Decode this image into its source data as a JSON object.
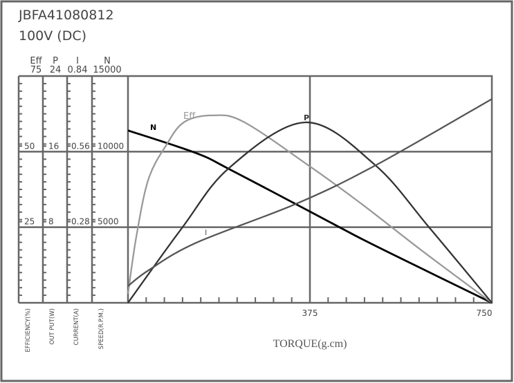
{
  "chart_data": {
    "type": "line",
    "title": "JBFA41080812",
    "subtitle": "100V (DC)",
    "xlabel": "TORQUE(g.cm)",
    "xlim": [
      0,
      750
    ],
    "x_ticks": [
      "375",
      "750"
    ],
    "grid": true,
    "axes": [
      {
        "key": "Eff",
        "header": "Eff",
        "max_label": "75",
        "ticks": [
          "50",
          "25"
        ],
        "label": "EFFICIENCY(%)",
        "range": [
          0,
          75
        ]
      },
      {
        "key": "P",
        "header": "P",
        "max_label": "24",
        "ticks": [
          "16",
          "8"
        ],
        "label": "OUT PUT(W)",
        "range": [
          0,
          24
        ]
      },
      {
        "key": "I",
        "header": "I",
        "max_label": "0.84",
        "ticks": [
          "0.56",
          "0.28"
        ],
        "label": "CURRENT(A)",
        "range": [
          0,
          0.84
        ]
      },
      {
        "key": "N",
        "header": "N",
        "max_label": "15000",
        "ticks": [
          "10000",
          "5000"
        ],
        "label": "SPEED(R.P.M.)",
        "range": [
          0,
          15000
        ]
      }
    ],
    "series": [
      {
        "name": "N",
        "axis": "N",
        "color": "#000000",
        "x": [
          0,
          140,
          209,
          376,
          484,
          607,
          750
        ],
        "y": [
          11400,
          9910,
          8840,
          6020,
          4190,
          2240,
          0
        ]
      },
      {
        "name": "Eff",
        "axis": "Eff",
        "color": "#999999",
        "x": [
          0,
          17,
          42,
          79,
          116,
          175,
          239,
          376,
          484,
          607,
          750
        ],
        "y": [
          3,
          21.7,
          40.8,
          52.2,
          59.8,
          62,
          59.8,
          45,
          32.4,
          17.1,
          0
        ]
      },
      {
        "name": "P",
        "axis": "P",
        "color": "#333333",
        "x": [
          0,
          111,
          209,
          366,
          509,
          622,
          750
        ],
        "y": [
          0,
          7.9,
          14.3,
          19.1,
          14.6,
          7.9,
          0
        ]
      },
      {
        "name": "I",
        "axis": "I",
        "color": "#555555",
        "x": [
          0,
          42,
          140,
          347,
          509,
          750
        ],
        "y": [
          0.062,
          0.12,
          0.222,
          0.367,
          0.508,
          0.755
        ]
      }
    ]
  }
}
